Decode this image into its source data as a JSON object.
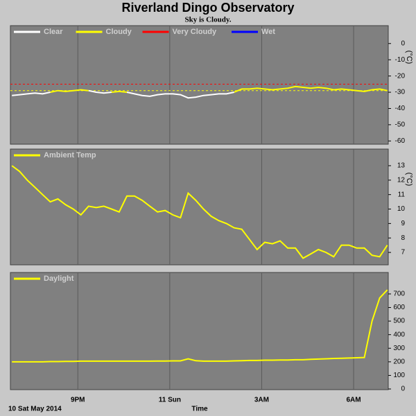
{
  "title": "Riverland Dingo Observatory",
  "subtitle": "Sky is Cloudy.",
  "chart_data": [
    {
      "type": "line",
      "ylabel": "(°C)",
      "x": [
        18.85,
        19.1,
        19.35,
        19.6,
        19.85,
        20.1,
        20.35,
        20.6,
        20.85,
        21.1,
        21.35,
        21.6,
        21.85,
        22.1,
        22.35,
        22.6,
        22.85,
        23.1,
        23.35,
        23.6,
        23.85,
        24.1,
        24.35,
        24.6,
        24.85,
        25.1,
        25.35,
        25.6,
        25.85,
        26.1,
        26.35,
        26.6,
        26.85,
        27.1,
        27.35,
        27.6,
        27.85,
        28.1,
        28.35,
        28.6,
        28.85,
        29.1,
        29.35,
        29.6,
        29.85,
        30.1,
        30.35,
        30.6,
        30.85,
        31.1
      ],
      "series": [
        {
          "name": "Clear",
          "color": "#ffffff",
          "values": [
            -32,
            -31.5,
            -31,
            -30.5,
            -31,
            -30,
            null,
            null,
            null,
            null,
            -29,
            -30,
            -30.5,
            -30,
            null,
            -30,
            -31,
            -32,
            -32.5,
            -31.5,
            -31,
            -31,
            -31.5,
            -33.5,
            -33,
            -32,
            -31.5,
            -31,
            -31,
            -30,
            null,
            null,
            null,
            null,
            null,
            null,
            null,
            null,
            null,
            null,
            null,
            null,
            null,
            null,
            null,
            null,
            null,
            null,
            null,
            null
          ]
        },
        {
          "name": "Cloudy",
          "color": "#ffff00",
          "values": [
            null,
            null,
            null,
            null,
            null,
            -30,
            -29,
            -29.5,
            -29,
            -28.5,
            -29,
            null,
            null,
            -30,
            -29.5,
            -30,
            null,
            null,
            null,
            null,
            null,
            null,
            null,
            null,
            null,
            null,
            null,
            null,
            null,
            -30,
            -28,
            -28,
            -27.5,
            -28,
            -28.5,
            -28,
            -27.5,
            -26.5,
            -27,
            -27.5,
            -27,
            -27.5,
            -28.5,
            -28,
            -28.5,
            -29,
            -29.5,
            -28.5,
            -28,
            -29
          ]
        },
        {
          "name": "Very Cloudy",
          "color": "#ff0000",
          "values": [
            null,
            null,
            null,
            null,
            null,
            null,
            null,
            null,
            null,
            null,
            null,
            null,
            null,
            null,
            null,
            null,
            null,
            null,
            null,
            null,
            null,
            null,
            null,
            null,
            null,
            null,
            null,
            null,
            null,
            null,
            null,
            null,
            null,
            null,
            null,
            null,
            null,
            null,
            null,
            null,
            null,
            null,
            null,
            null,
            null,
            null,
            null,
            null,
            null,
            null
          ]
        },
        {
          "name": "Wet",
          "color": "#0000ff",
          "values": [
            null,
            null,
            null,
            null,
            null,
            null,
            null,
            null,
            null,
            null,
            null,
            null,
            null,
            null,
            null,
            null,
            null,
            null,
            null,
            null,
            null,
            null,
            null,
            null,
            null,
            null,
            null,
            null,
            null,
            null,
            null,
            null,
            null,
            null,
            null,
            null,
            null,
            null,
            null,
            null,
            null,
            null,
            null,
            null,
            null,
            null,
            null,
            null,
            null,
            null
          ]
        }
      ],
      "thresholds": [
        {
          "value": -25,
          "color": "#ff0000"
        },
        {
          "value": -29,
          "color": "#ffff00"
        }
      ],
      "xlim": [
        18.8,
        31.13
      ],
      "xticks": [
        21,
        24,
        27,
        30
      ],
      "ylim": [
        -62,
        11
      ],
      "yticks": [
        0,
        -10,
        -20,
        -30,
        -40,
        -50,
        -60
      ]
    },
    {
      "type": "line",
      "ylabel": "(°C)",
      "x": [
        18.85,
        19.1,
        19.35,
        19.6,
        19.85,
        20.1,
        20.35,
        20.6,
        20.85,
        21.1,
        21.35,
        21.6,
        21.85,
        22.1,
        22.35,
        22.6,
        22.85,
        23.1,
        23.35,
        23.6,
        23.85,
        24.1,
        24.35,
        24.6,
        24.85,
        25.1,
        25.35,
        25.6,
        25.85,
        26.1,
        26.35,
        26.6,
        26.85,
        27.1,
        27.35,
        27.6,
        27.85,
        28.1,
        28.35,
        28.6,
        28.85,
        29.1,
        29.35,
        29.6,
        29.85,
        30.1,
        30.35,
        30.6,
        30.85,
        31.1
      ],
      "series": [
        {
          "name": "Ambient Temp",
          "color": "#ffff00",
          "values": [
            13,
            12.6,
            12,
            11.5,
            11,
            10.5,
            10.7,
            10.3,
            10,
            9.6,
            10.2,
            10.1,
            10.2,
            10,
            9.8,
            10.9,
            10.9,
            10.6,
            10.2,
            9.8,
            9.9,
            9.6,
            9.4,
            11.1,
            10.6,
            10,
            9.5,
            9.2,
            9,
            8.7,
            8.6,
            7.9,
            7.2,
            7.7,
            7.6,
            7.8,
            7.3,
            7.3,
            6.6,
            6.9,
            7.2,
            7,
            6.7,
            7.5,
            7.5,
            7.3,
            7.3,
            6.8,
            6.7,
            7.5
          ]
        }
      ],
      "xlim": [
        18.8,
        31.13
      ],
      "xticks": [
        21,
        24,
        27,
        30
      ],
      "ylim": [
        6.14,
        14.15
      ],
      "yticks": [
        7,
        8,
        9,
        10,
        11,
        12,
        13
      ]
    },
    {
      "type": "line",
      "xlabel": "Time",
      "date": "10 Sat May 2014",
      "x": [
        18.85,
        19.1,
        19.35,
        19.6,
        19.85,
        20.1,
        20.35,
        20.6,
        20.85,
        21.1,
        21.35,
        21.6,
        21.85,
        22.1,
        22.35,
        22.6,
        22.85,
        23.1,
        23.35,
        23.6,
        23.85,
        24.1,
        24.35,
        24.6,
        24.85,
        25.1,
        25.35,
        25.6,
        25.85,
        26.1,
        26.35,
        26.6,
        26.85,
        27.1,
        27.35,
        27.6,
        27.85,
        28.1,
        28.35,
        28.6,
        28.85,
        29.1,
        29.35,
        29.6,
        29.85,
        30.1,
        30.35,
        30.6,
        30.85,
        31.1
      ],
      "series": [
        {
          "name": "Daylight",
          "color": "#ffff00",
          "values": [
            200,
            200,
            200,
            200,
            200,
            202,
            202,
            203,
            203,
            205,
            205,
            205,
            205,
            205,
            205,
            205,
            205,
            205,
            205,
            206,
            206,
            207,
            207,
            222,
            208,
            205,
            205,
            205,
            205,
            207,
            208,
            210,
            210,
            212,
            212,
            213,
            213,
            215,
            215,
            218,
            220,
            222,
            225,
            226,
            228,
            230,
            232,
            500,
            670,
            730
          ]
        }
      ],
      "xlim": [
        18.8,
        31.13
      ],
      "xticks": [
        {
          "value": 21,
          "label": "9PM"
        },
        {
          "value": 24,
          "label": "11 Sun"
        },
        {
          "value": 27,
          "label": "3AM"
        },
        {
          "value": 30,
          "label": "6AM"
        }
      ],
      "ylim": [
        -5,
        858
      ],
      "yticks": [
        0,
        100,
        200,
        300,
        400,
        500,
        600,
        700
      ]
    }
  ]
}
